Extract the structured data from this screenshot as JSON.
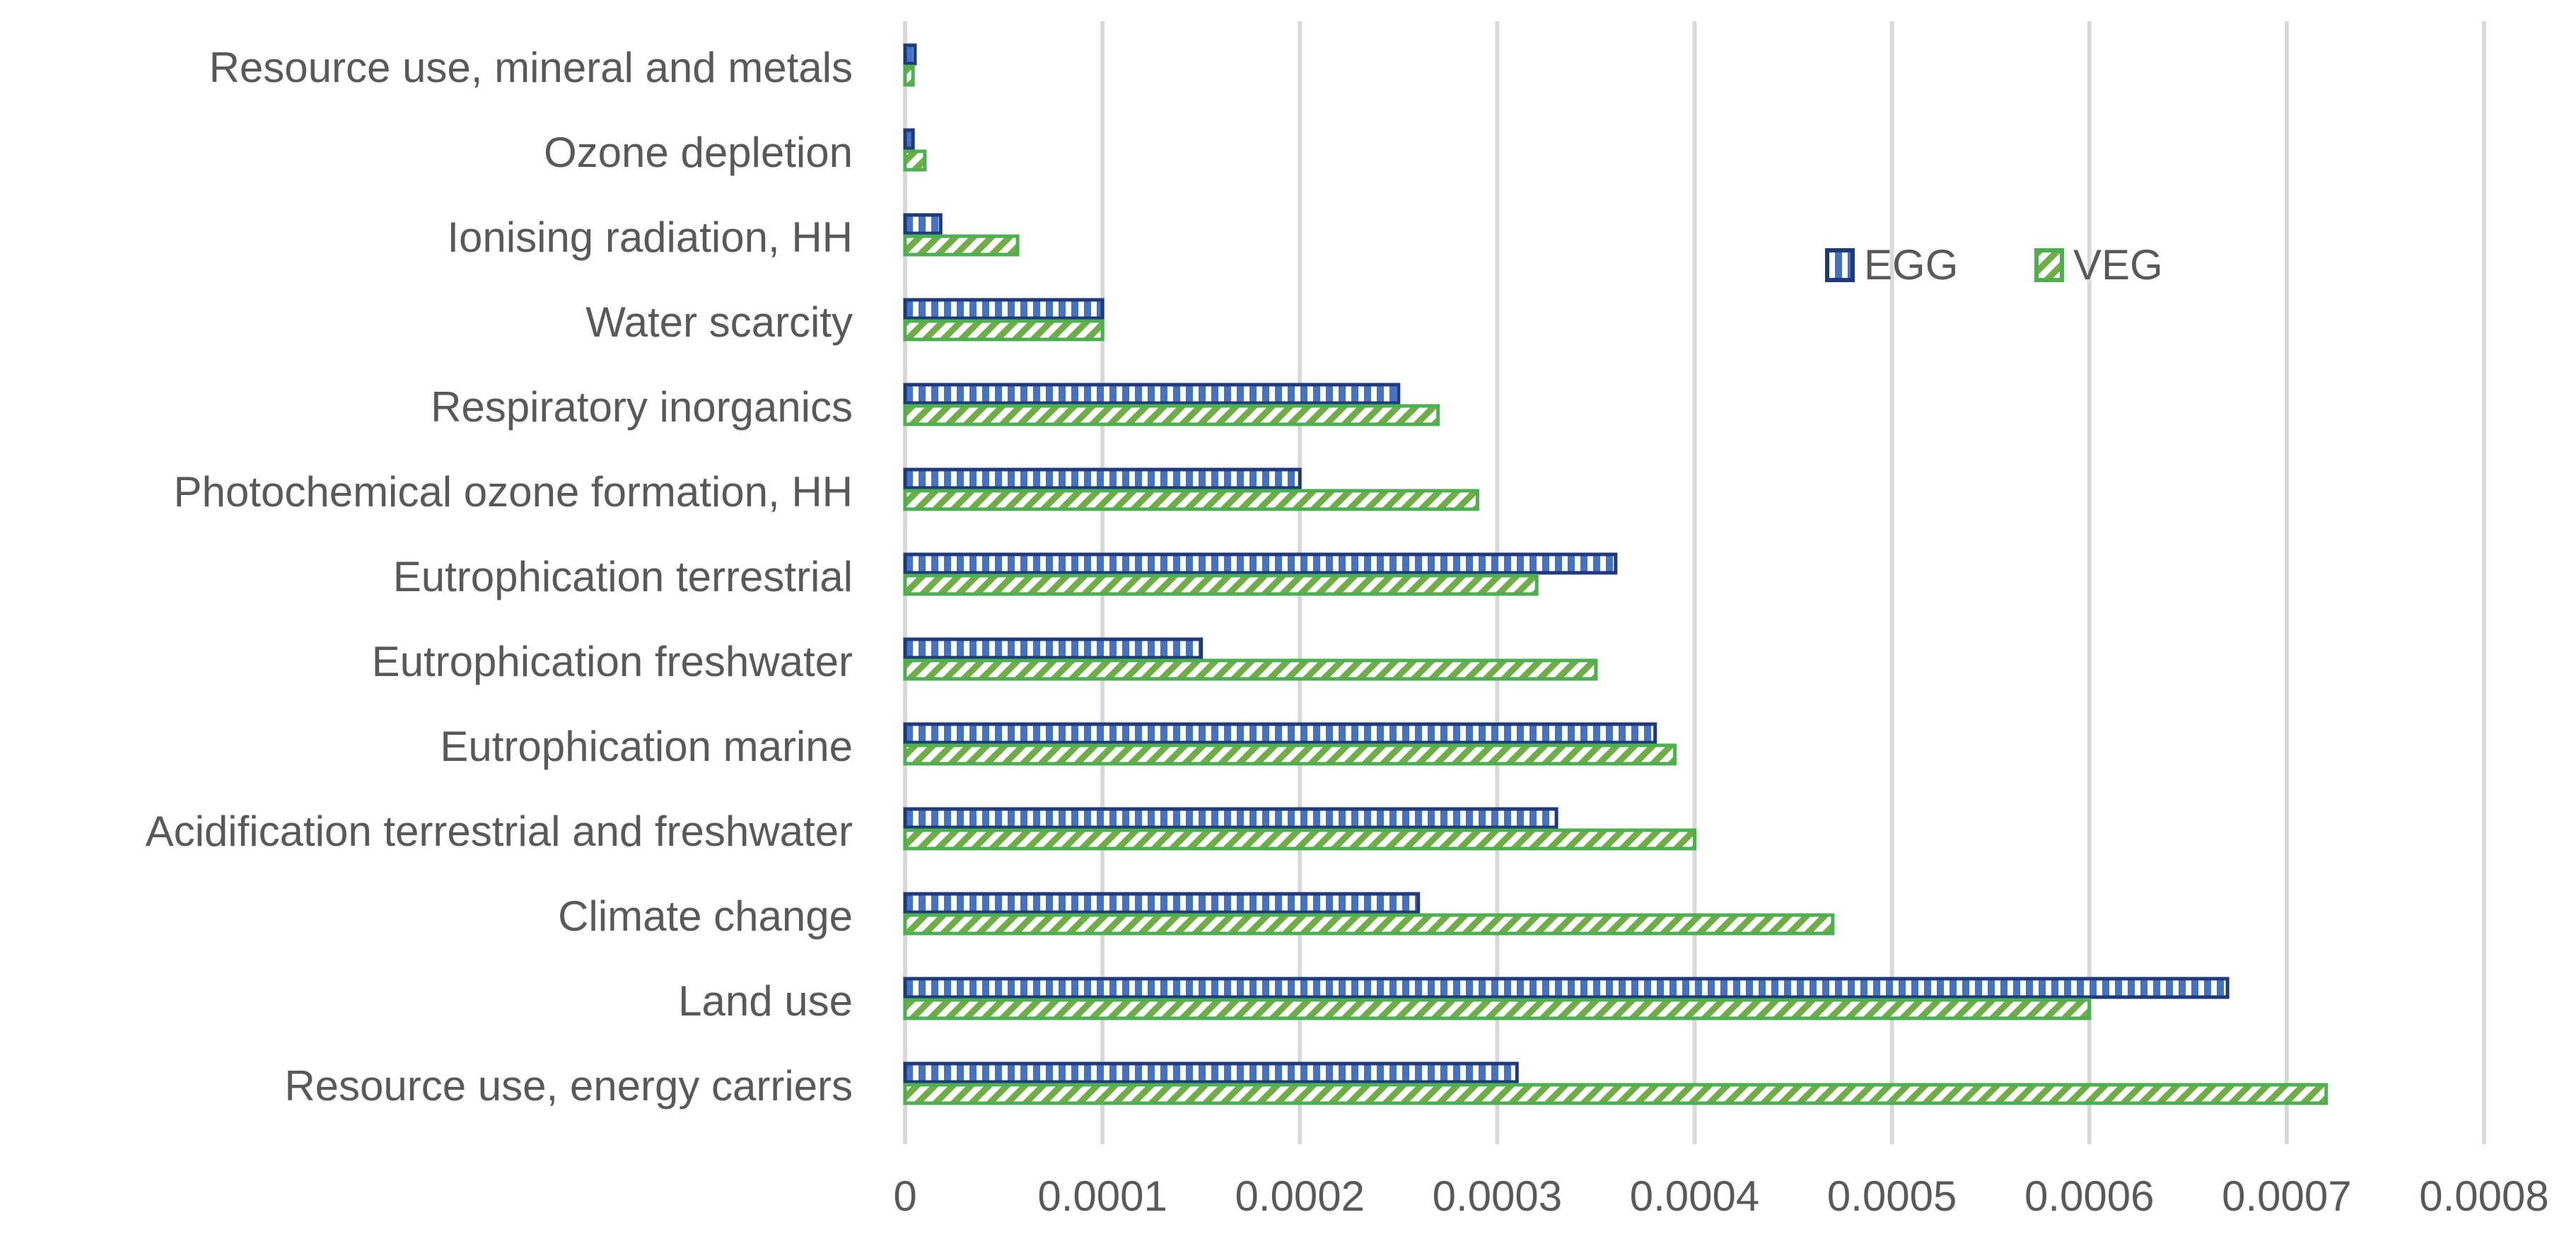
{
  "chart_data": {
    "type": "bar",
    "orientation": "horizontal",
    "title": "",
    "xlabel": "",
    "ylabel": "",
    "xlim": [
      0,
      0.0008
    ],
    "grid": true,
    "legend_position": "top-right",
    "ticks": [
      "0",
      "0.0001",
      "0.0002",
      "0.0003",
      "0.0004",
      "0.0005",
      "0.0006",
      "0.0007",
      "0.0008"
    ],
    "tick_values": [
      0,
      0.0001,
      0.0002,
      0.0003,
      0.0004,
      0.0005,
      0.0006,
      0.0007,
      0.0008
    ],
    "categories": [
      "Resource use, mineral and metals",
      "Ozone depletion",
      "Ionising radiation, HH",
      "Water scarcity",
      "Respiratory inorganics",
      "Photochemical ozone formation, HH",
      "Eutrophication terrestrial",
      "Eutrophication freshwater",
      "Eutrophication marine",
      "Acidification terrestrial and freshwater",
      "Climate change",
      "Land use",
      "Resource use, energy carriers"
    ],
    "series": [
      {
        "name": "EGG",
        "color": "#1f3a7a",
        "fill": "#4472c4",
        "values": [
          5e-06,
          4e-06,
          1.8e-05,
          0.0001,
          0.00025,
          0.0002,
          0.00036,
          0.00015,
          0.00038,
          0.00033,
          0.00026,
          0.00067,
          0.00031
        ]
      },
      {
        "name": "VEG",
        "color": "#4caf50",
        "fill": "#70ad47",
        "values": [
          4e-06,
          1e-05,
          5.7e-05,
          0.0001,
          0.00027,
          0.00029,
          0.00032,
          0.00035,
          0.00039,
          0.0004,
          0.00047,
          0.0006,
          0.00072
        ]
      }
    ]
  }
}
